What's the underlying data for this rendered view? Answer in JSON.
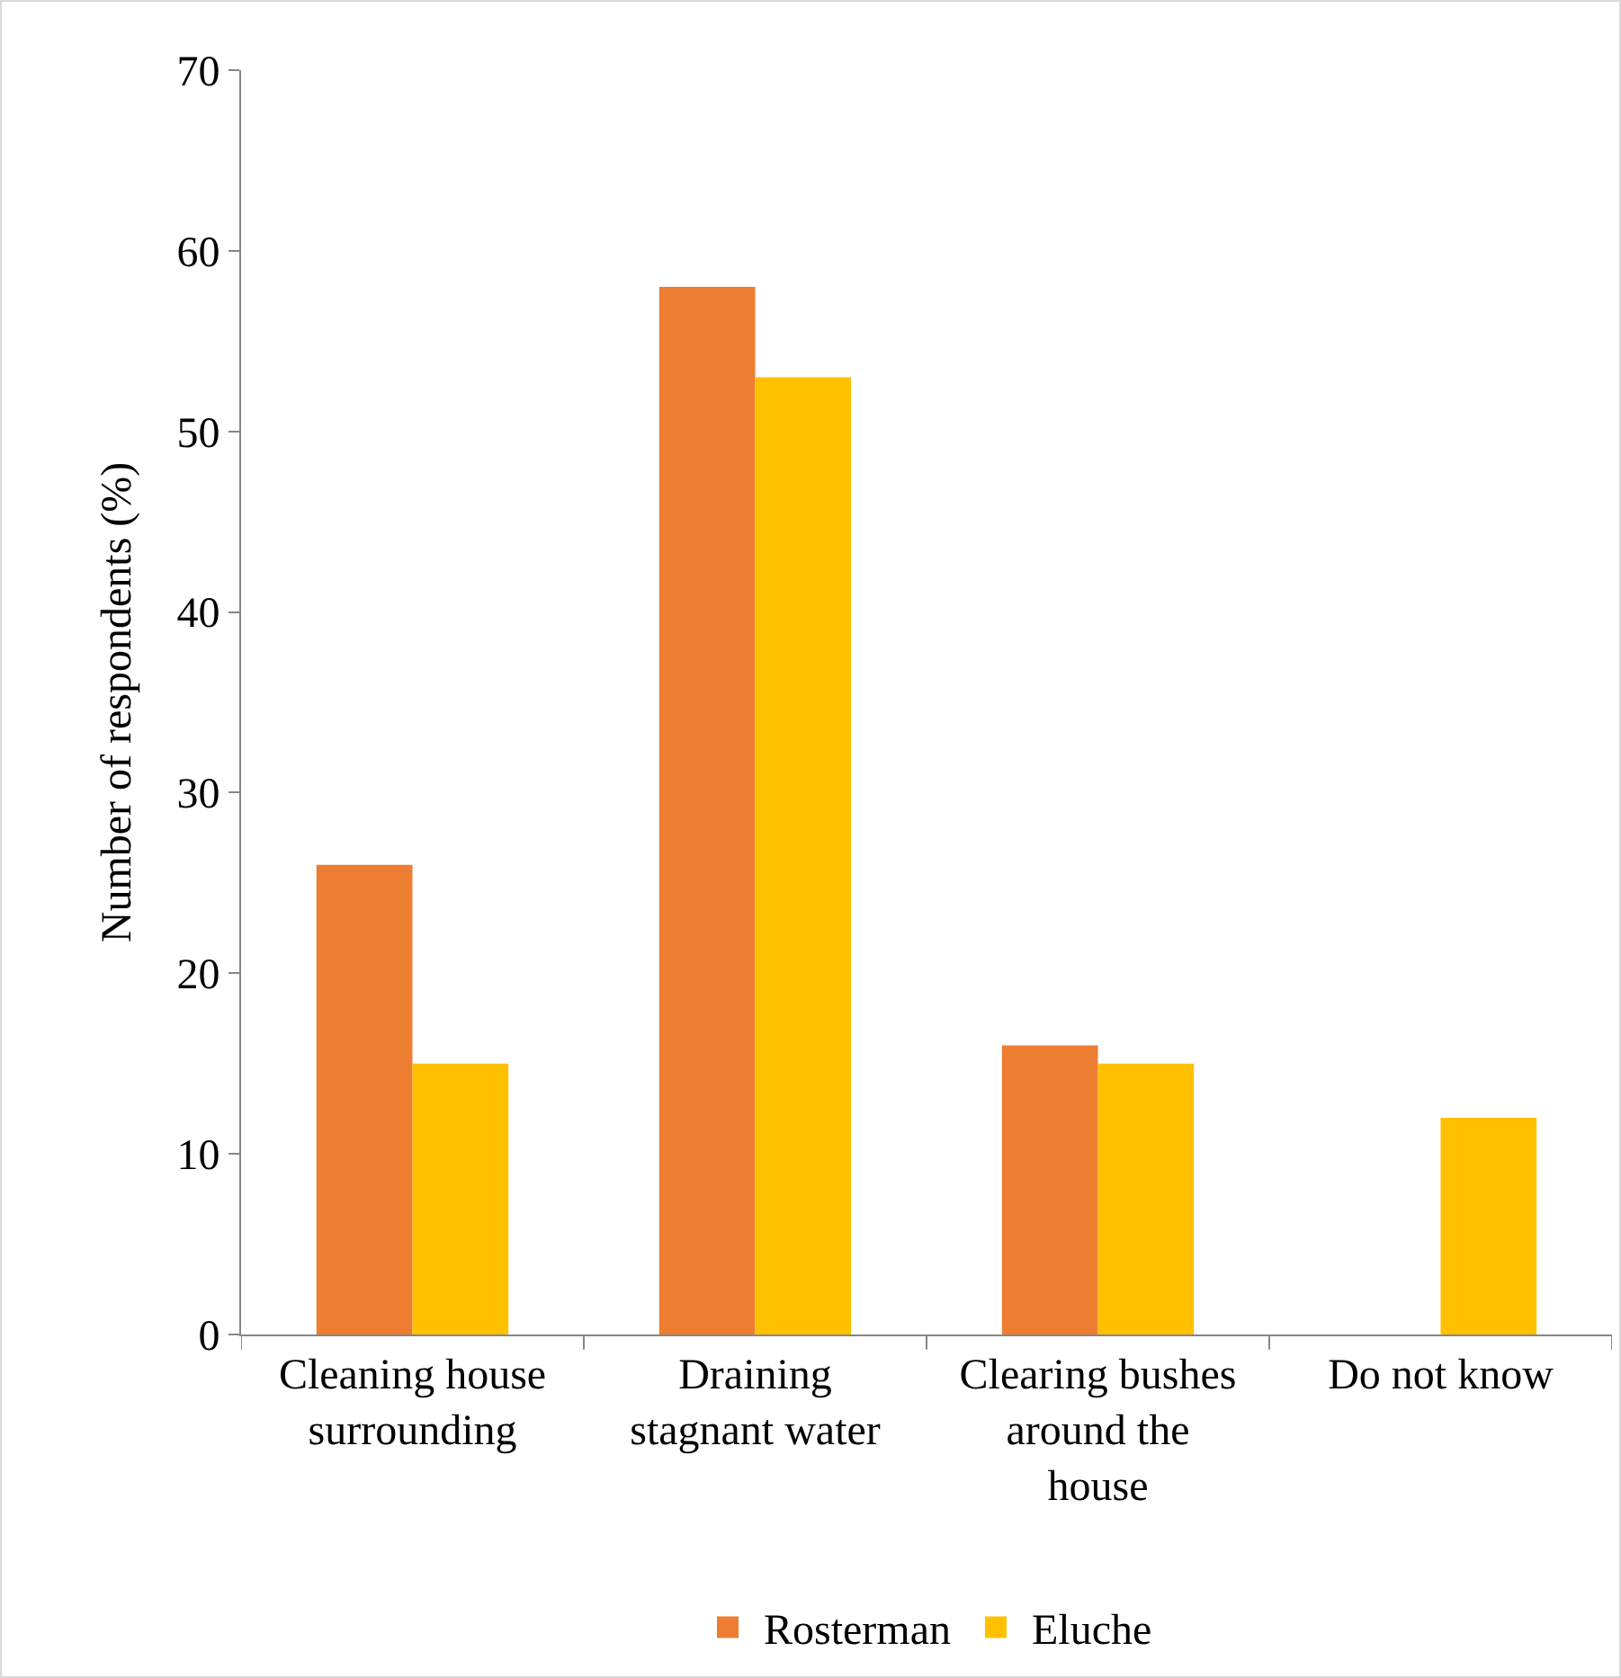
{
  "chart_data": {
    "type": "bar",
    "ylabel": "Number of respondents (%)",
    "categories": [
      "Cleaning house surrounding",
      "Draining stagnant water",
      "Clearing bushes around the house",
      "Do not know"
    ],
    "series": [
      {
        "name": "Rosterman",
        "color": "#ed7d31",
        "values": [
          26,
          58,
          16,
          0
        ]
      },
      {
        "name": "Eluche",
        "color": "#ffc000",
        "values": [
          15,
          53,
          15,
          12
        ]
      }
    ],
    "ylim": [
      0,
      70
    ],
    "yticks": [
      0,
      10,
      20,
      30,
      40,
      50,
      60,
      70
    ],
    "grid": false,
    "legend": "bottom"
  }
}
